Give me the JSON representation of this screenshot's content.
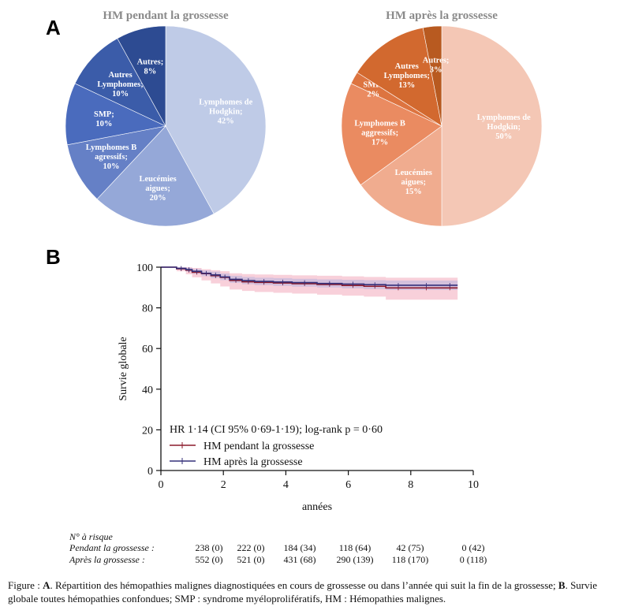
{
  "panel_a_letter": "A",
  "panel_b_letter": "B",
  "chart_data": [
    {
      "type": "pie",
      "title": "HM pendant la grossesse",
      "slices": [
        {
          "label": "Lymphomes de Hodgkin;",
          "value_label": "42%",
          "value": 42,
          "color": "#bfcbe7"
        },
        {
          "label": "Leucémies aigues;",
          "value_label": "20%",
          "value": 20,
          "color": "#95a8d8"
        },
        {
          "label": "Lymphomes B agressifs;",
          "value_label": "10%",
          "value": 10,
          "color": "#6580c6"
        },
        {
          "label": "SMP;",
          "value_label": "10%",
          "value": 10,
          "color": "#4a6bbd"
        },
        {
          "label": "Autres Lymphomes;",
          "value_label": "10%",
          "value": 10,
          "color": "#3b5ca9"
        },
        {
          "label": "Autres;",
          "value_label": "8%",
          "value": 8,
          "color": "#2d4b92"
        }
      ]
    },
    {
      "type": "pie",
      "title": "HM après la grossesse",
      "slices": [
        {
          "label": "Lymphomes de Hodgkin;",
          "value_label": "50%",
          "value": 50,
          "color": "#f4c7b5"
        },
        {
          "label": "Leucémies aigues;",
          "value_label": "15%",
          "value": 15,
          "color": "#f0ac8f"
        },
        {
          "label": "Lymphomes B aggressifs;",
          "value_label": "17%",
          "value": 17,
          "color": "#ea8b61"
        },
        {
          "label": "SMP;",
          "value_label": "2%",
          "value": 2,
          "color": "#dd7440"
        },
        {
          "label": "Autres Lymphomes;",
          "value_label": "13%",
          "value": 13,
          "color": "#d2692f"
        },
        {
          "label": "Autres;",
          "value_label": "3%",
          "value": 3,
          "color": "#b85a20"
        }
      ]
    },
    {
      "type": "line",
      "ylabel": "Survie globale",
      "xlabel": "années",
      "xlim": [
        0,
        10
      ],
      "ylim": [
        0,
        100
      ],
      "xticks": [
        0,
        2,
        4,
        6,
        8,
        10
      ],
      "yticks": [
        0,
        20,
        40,
        60,
        80,
        100
      ],
      "annotation": "HR 1·14 (CI 95% 0·69-1·19); log-rank p = 0·60",
      "series": [
        {
          "name": "HM pendant la grossesse",
          "color": "#8b1a2b",
          "ci_color": "#f2a9bc",
          "x": [
            0,
            0.5,
            0.8,
            1.0,
            1.3,
            1.6,
            1.9,
            2.2,
            2.6,
            3.0,
            3.6,
            4.2,
            5.0,
            5.8,
            6.5,
            7.2,
            8.0,
            9.0,
            9.5
          ],
          "y": [
            100,
            99.2,
            98.5,
            97.5,
            96.8,
            95.8,
            95.0,
            93.5,
            92.8,
            92.5,
            92.2,
            91.9,
            91.5,
            91.0,
            90.6,
            89.8,
            89.8,
            89.8,
            89.8
          ],
          "ci_low": [
            100,
            98,
            96.5,
            95,
            93.5,
            92,
            90.5,
            89,
            88.3,
            87.8,
            87.4,
            87,
            86.5,
            86,
            85.5,
            84,
            84,
            84,
            84
          ],
          "ci_high": [
            100,
            100,
            100,
            99.6,
            99,
            98.5,
            98,
            97,
            96.6,
            96.4,
            96.2,
            96,
            95.8,
            95.5,
            95.2,
            94.8,
            94.8,
            94.8,
            94.8
          ]
        },
        {
          "name": "HM après la grossesse",
          "color": "#35307a",
          "ci_color": "#b6b3de",
          "x": [
            0,
            0.5,
            0.8,
            1.0,
            1.3,
            1.6,
            1.9,
            2.2,
            2.6,
            3.0,
            3.6,
            4.2,
            5.0,
            5.8,
            6.5,
            7.2,
            8.0,
            9.0,
            9.5
          ],
          "y": [
            100,
            99.4,
            98.8,
            98.0,
            97.0,
            96.2,
            95.2,
            94.0,
            93.4,
            93.0,
            92.7,
            92.4,
            92.0,
            91.7,
            91.4,
            91.1,
            91.1,
            91.1,
            91.1
          ],
          "ci_low": [
            100,
            98.8,
            97.8,
            96.8,
            95.6,
            94.6,
            93.6,
            92.3,
            91.6,
            91.2,
            90.8,
            90.4,
            90.0,
            89.6,
            89.2,
            88.8,
            88.8,
            88.8,
            88.8
          ],
          "ci_high": [
            100,
            100,
            99.7,
            99.1,
            98.4,
            97.8,
            96.9,
            95.8,
            95.2,
            94.8,
            94.6,
            94.3,
            94.0,
            93.8,
            93.6,
            93.4,
            93.4,
            93.4,
            93.4
          ]
        }
      ]
    }
  ],
  "risk_table": {
    "header": "N° à risque",
    "rows": [
      {
        "label": "Pendant la grossesse :",
        "values": [
          "238 (0)",
          "222 (0)",
          "184 (34)",
          "118 (64)",
          "42 (75)",
          "0 (42)"
        ]
      },
      {
        "label": "Après la grossesse :",
        "values": [
          "552 (0)",
          "521 (0)",
          "431 (68)",
          "290 (139)",
          "118 (170)",
          "0 (118)"
        ]
      }
    ]
  },
  "caption": {
    "prefix": "Figure : ",
    "bold_a": "A",
    "text_a": ". Répartition des hémopathies malignes diagnostiquées en cours de grossesse ou dans l’année qui suit la fin de la grossesse; ",
    "bold_b": "B",
    "text_b": ". Survie globale toutes hémopathies confondues; SMP : syndrome myéloprolifératifs, HM : Hémopathies malignes."
  }
}
